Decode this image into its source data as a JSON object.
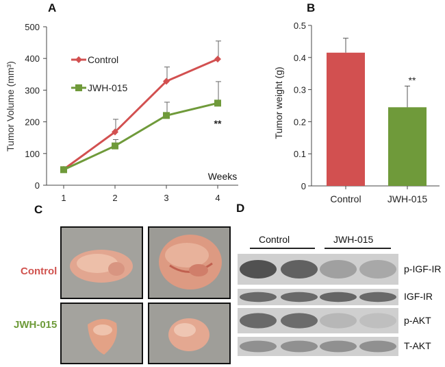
{
  "panel_letters": {
    "a": "A",
    "b": "B",
    "c": "C",
    "d": "D"
  },
  "colors": {
    "control": "#d25050",
    "jwh": "#6f9a3a",
    "axis": "#444444",
    "photo_label_control": "#d0524e",
    "photo_label_jwh": "#6e9b3a"
  },
  "chart_data": [
    {
      "type": "line",
      "panel": "A",
      "x": [
        1,
        2,
        3,
        4
      ],
      "xtick_labels": [
        "1",
        "2",
        "3",
        "4"
      ],
      "ylim": [
        0,
        500
      ],
      "yticks": [
        0,
        100,
        200,
        300,
        400,
        500
      ],
      "ytick_labels": [
        "0",
        "100",
        "200",
        "300",
        "400",
        "500"
      ],
      "ylabel": "Tumor Volume (mm³)",
      "xlabel": "Weeks",
      "series": [
        {
          "name": "Control",
          "values": [
            50,
            168,
            328,
            398
          ],
          "errors": [
            0,
            40,
            45,
            57
          ],
          "color": "#d25050"
        },
        {
          "name": "JWH-015",
          "values": [
            49,
            124,
            220,
            259
          ],
          "errors": [
            0,
            20,
            42,
            68
          ],
          "color": "#6f9a3a"
        }
      ],
      "annotation": "**"
    },
    {
      "type": "bar",
      "panel": "B",
      "categories": [
        "Control",
        "JWH-015"
      ],
      "values": [
        0.415,
        0.245
      ],
      "errors": [
        0.045,
        0.066
      ],
      "colors": [
        "#d25050",
        "#6f9a3a"
      ],
      "ylim": [
        0,
        0.5
      ],
      "yticks": [
        0,
        0.1,
        0.2,
        0.3,
        0.4,
        0.5
      ],
      "ytick_labels": [
        "0",
        "0.1",
        "0.2",
        "0.3",
        "0.4",
        "0.5"
      ],
      "ylabel": "Tumor weight (g)",
      "annotation": "**"
    }
  ],
  "photos": {
    "row_labels": [
      "Control",
      "JWH-015"
    ]
  },
  "blot": {
    "groups": [
      "Control",
      "JWH-015"
    ],
    "bands": [
      {
        "label": "p-IGF-IR",
        "intensity": [
          0.85,
          0.75,
          0.35,
          0.3
        ]
      },
      {
        "label": "IGF-IR",
        "intensity": [
          0.7,
          0.7,
          0.72,
          0.7
        ]
      },
      {
        "label": "p-AKT",
        "intensity": [
          0.7,
          0.68,
          0.2,
          0.15
        ]
      },
      {
        "label": "T-AKT",
        "intensity": [
          0.45,
          0.45,
          0.45,
          0.45
        ]
      }
    ]
  }
}
